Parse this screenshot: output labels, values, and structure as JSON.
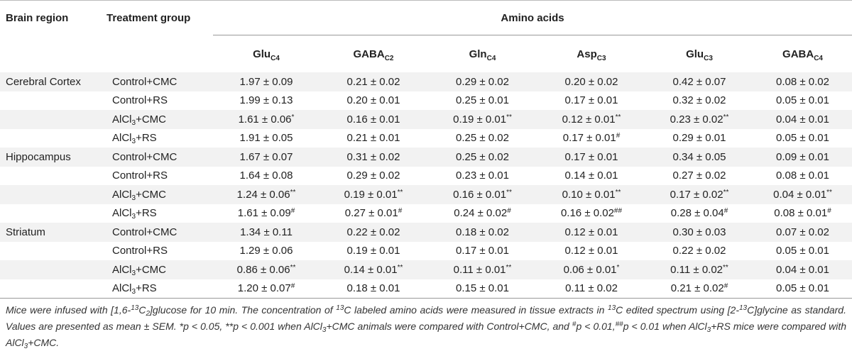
{
  "header": {
    "brain_region": "Brain region",
    "treatment_group": "Treatment group",
    "amino_acids": "Amino acids"
  },
  "columns": [
    {
      "base": "Glu",
      "sub": "C4"
    },
    {
      "base": "GABA",
      "sub": "C2"
    },
    {
      "base": "Gln",
      "sub": "C4"
    },
    {
      "base": "Asp",
      "sub": "C3"
    },
    {
      "base": "Glu",
      "sub": "C3"
    },
    {
      "base": "GABA",
      "sub": "C4"
    }
  ],
  "rows": [
    {
      "region": "Cerebral Cortex",
      "group": "Control+CMC",
      "cells": [
        {
          "v": "1.97 ± 0.09",
          "m": ""
        },
        {
          "v": "0.21 ± 0.02",
          "m": ""
        },
        {
          "v": "0.29 ± 0.02",
          "m": ""
        },
        {
          "v": "0.20 ± 0.02",
          "m": ""
        },
        {
          "v": "0.42 ± 0.07",
          "m": ""
        },
        {
          "v": "0.08 ± 0.02",
          "m": ""
        }
      ]
    },
    {
      "region": "",
      "group": "Control+RS",
      "cells": [
        {
          "v": "1.99 ± 0.13",
          "m": ""
        },
        {
          "v": "0.20 ± 0.01",
          "m": ""
        },
        {
          "v": "0.25 ± 0.01",
          "m": ""
        },
        {
          "v": "0.17 ± 0.01",
          "m": ""
        },
        {
          "v": "0.32 ± 0.02",
          "m": ""
        },
        {
          "v": "0.05 ± 0.01",
          "m": ""
        }
      ]
    },
    {
      "region": "",
      "group": "AlCl3+CMC",
      "cells": [
        {
          "v": "1.61 ± 0.06",
          "m": "*"
        },
        {
          "v": "0.16 ± 0.01",
          "m": ""
        },
        {
          "v": "0.19 ± 0.01",
          "m": "**"
        },
        {
          "v": "0.12 ± 0.01",
          "m": "**"
        },
        {
          "v": "0.23 ± 0.02",
          "m": "**"
        },
        {
          "v": "0.04 ± 0.01",
          "m": ""
        }
      ]
    },
    {
      "region": "",
      "group": "AlCl3+RS",
      "cells": [
        {
          "v": "1.91 ± 0.05",
          "m": ""
        },
        {
          "v": "0.21 ± 0.01",
          "m": ""
        },
        {
          "v": "0.25 ± 0.02",
          "m": ""
        },
        {
          "v": "0.17 ± 0.01",
          "m": "#"
        },
        {
          "v": "0.29 ± 0.01",
          "m": ""
        },
        {
          "v": "0.05 ± 0.01",
          "m": ""
        }
      ]
    },
    {
      "region": "Hippocampus",
      "group": "Control+CMC",
      "cells": [
        {
          "v": "1.67 ± 0.07",
          "m": ""
        },
        {
          "v": "0.31 ± 0.02",
          "m": ""
        },
        {
          "v": "0.25 ± 0.02",
          "m": ""
        },
        {
          "v": "0.17 ±  0.01",
          "m": ""
        },
        {
          "v": "0.34 ± 0.05",
          "m": ""
        },
        {
          "v": "0.09 ± 0.01",
          "m": ""
        }
      ]
    },
    {
      "region": "",
      "group": "Control+RS",
      "cells": [
        {
          "v": "1.64 ± 0.08",
          "m": ""
        },
        {
          "v": "0.29 ± 0.02",
          "m": ""
        },
        {
          "v": "0.23 ± 0.01",
          "m": ""
        },
        {
          "v": "0.14 ± 0.01",
          "m": ""
        },
        {
          "v": "0.27 ± 0.02",
          "m": ""
        },
        {
          "v": "0.08 ± 0.01",
          "m": ""
        }
      ]
    },
    {
      "region": "",
      "group": "AlCl3+CMC",
      "cells": [
        {
          "v": "1.24 ± 0.06",
          "m": "**"
        },
        {
          "v": "0.19 ± 0.01",
          "m": "**"
        },
        {
          "v": "0.16 ±  0.01",
          "m": "**"
        },
        {
          "v": "0.10 ±  0.01",
          "m": "**"
        },
        {
          "v": "0.17 ± 0.02",
          "m": "**"
        },
        {
          "v": "0.04 ± 0.01",
          "m": "**"
        }
      ]
    },
    {
      "region": "",
      "group": "AlCl3+RS",
      "cells": [
        {
          "v": "1.61 ± 0.09",
          "m": "#"
        },
        {
          "v": "0.27 ± 0.01",
          "m": "#"
        },
        {
          "v": "0.24 ± 0.02",
          "m": "#"
        },
        {
          "v": "0.16 ± 0.02",
          "m": "##"
        },
        {
          "v": "0.28 ± 0.04",
          "m": "#"
        },
        {
          "v": "0.08 ± 0.01",
          "m": "#"
        }
      ]
    },
    {
      "region": "Striatum",
      "group": "Control+CMC",
      "cells": [
        {
          "v": "1.34 ± 0.11",
          "m": ""
        },
        {
          "v": "0.22 ± 0.02",
          "m": ""
        },
        {
          "v": "0.18 ± 0.02",
          "m": ""
        },
        {
          "v": "0.12 ± 0.01",
          "m": ""
        },
        {
          "v": "0.30 ± 0.03",
          "m": ""
        },
        {
          "v": "0.07 ± 0.02",
          "m": ""
        }
      ]
    },
    {
      "region": "",
      "group": "Control+RS",
      "cells": [
        {
          "v": "1.29 ± 0.06",
          "m": ""
        },
        {
          "v": "0.19 ± 0.01",
          "m": ""
        },
        {
          "v": "0.17 ± 0.01",
          "m": ""
        },
        {
          "v": "0.12 ± 0.01",
          "m": ""
        },
        {
          "v": "0.22 ± 0.02",
          "m": ""
        },
        {
          "v": "0.05 ± 0.01",
          "m": ""
        }
      ]
    },
    {
      "region": "",
      "group": "AlCl3+CMC",
      "cells": [
        {
          "v": "0.86 ± 0.06",
          "m": "**"
        },
        {
          "v": "0.14 ± 0.01",
          "m": "**"
        },
        {
          "v": "0.11 ± 0.01",
          "m": "**"
        },
        {
          "v": "0.06 ± 0.01",
          "m": "*"
        },
        {
          "v": "0.11 ± 0.02",
          "m": "**"
        },
        {
          "v": "0.04 ± 0.01",
          "m": ""
        }
      ]
    },
    {
      "region": "",
      "group": "AlCl3+RS",
      "cells": [
        {
          "v": "1.20 ± 0.07",
          "m": "#"
        },
        {
          "v": "0.18 ± 0.01",
          "m": ""
        },
        {
          "v": "0.15 ± 0.01",
          "m": ""
        },
        {
          "v": "0.11 ± 0.02",
          "m": ""
        },
        {
          "v": "0.21 ± 0.02",
          "m": "#"
        },
        {
          "v": "0.05 ± 0.01",
          "m": ""
        }
      ]
    }
  ],
  "footnote": "Mice were infused with [1,6-13C2]glucose for 10 min. The concentration of 13C labeled amino acids were measured in tissue extracts in 13C edited spectrum using [2-13C]glycine as standard. Values are presented as mean ± SEM. *p < 0.05, **p < 0.001 when AlCl3+CMC animals were compared with Control+CMC, and #p < 0.01,##p < 0.01 when AlCl3+RS mice were compared with AlCl3+CMC."
}
